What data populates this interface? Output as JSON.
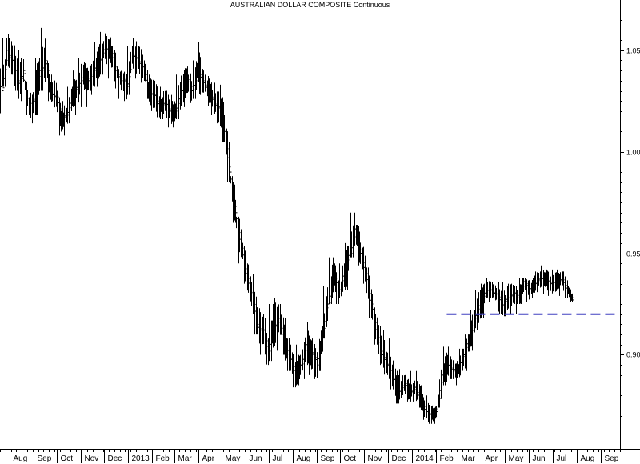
{
  "chart_data": {
    "type": "line",
    "title": "AUSTRALIAN DOLLAR COMPOSITE Continuous",
    "xlabel": "",
    "ylabel": "",
    "x_axis_labels": [
      "Aug",
      "Sep",
      "Oct",
      "Nov",
      "Dec",
      "2013",
      "Feb",
      "Mar",
      "Apr",
      "May",
      "Jun",
      "Jul",
      "Aug",
      "Sep",
      "Oct",
      "Nov",
      "Dec",
      "2014",
      "Feb",
      "Mar",
      "Apr",
      "May",
      "Jun",
      "Jul",
      "Aug",
      "Sep"
    ],
    "y_ticks": [
      0.9,
      0.95,
      1.0,
      1.05
    ],
    "y_tick_labels": [
      "0.90",
      "0.95",
      "1.00",
      "1.05"
    ],
    "ylim": [
      0.86,
      1.07
    ],
    "y_axis_position": "right",
    "grid": false,
    "series": [
      {
        "x": [
          "2012-07-16",
          "2012-07-23",
          "2012-07-30",
          "2012-08-06",
          "2012-08-13",
          "2012-08-20",
          "2012-08-27",
          "2012-09-03",
          "2012-09-10",
          "2012-09-17",
          "2012-09-24",
          "2012-10-01",
          "2012-10-08",
          "2012-10-15",
          "2012-10-22",
          "2012-10-29",
          "2012-11-05",
          "2012-11-12",
          "2012-11-19",
          "2012-11-26",
          "2012-12-03",
          "2012-12-10",
          "2012-12-17",
          "2012-12-24",
          "2012-12-31",
          "2013-01-07",
          "2013-01-14",
          "2013-01-21",
          "2013-01-28",
          "2013-02-04",
          "2013-02-11",
          "2013-02-18",
          "2013-02-25",
          "2013-03-04",
          "2013-03-11",
          "2013-03-18",
          "2013-03-25",
          "2013-04-01",
          "2013-04-08",
          "2013-04-15",
          "2013-04-22",
          "2013-04-29",
          "2013-05-06",
          "2013-05-13",
          "2013-05-20",
          "2013-05-27",
          "2013-06-03",
          "2013-06-10",
          "2013-06-17",
          "2013-06-24",
          "2013-07-01",
          "2013-07-08",
          "2013-07-15",
          "2013-07-22",
          "2013-07-29",
          "2013-08-05",
          "2013-08-12",
          "2013-08-19",
          "2013-08-26",
          "2013-09-02",
          "2013-09-09",
          "2013-09-16",
          "2013-09-23",
          "2013-09-30",
          "2013-10-07",
          "2013-10-14",
          "2013-10-21",
          "2013-10-28",
          "2013-11-04",
          "2013-11-11",
          "2013-11-18",
          "2013-11-25",
          "2013-12-02",
          "2013-12-09",
          "2013-12-16",
          "2013-12-23",
          "2013-12-30",
          "2014-01-06",
          "2014-01-13",
          "2014-01-20",
          "2014-01-27",
          "2014-02-03",
          "2014-02-10",
          "2014-02-17",
          "2014-02-24",
          "2014-03-03",
          "2014-03-10",
          "2014-03-17",
          "2014-03-24",
          "2014-03-31",
          "2014-04-07",
          "2014-04-14",
          "2014-04-21",
          "2014-04-28",
          "2014-05-05",
          "2014-05-12",
          "2014-05-19",
          "2014-05-26",
          "2014-06-02",
          "2014-06-09",
          "2014-06-16",
          "2014-06-23",
          "2014-06-30",
          "2014-07-07",
          "2014-07-14",
          "2014-07-21"
        ],
        "high": [
          1.045,
          1.056,
          1.058,
          1.055,
          1.05,
          1.035,
          1.032,
          1.046,
          1.061,
          1.045,
          1.038,
          1.03,
          1.025,
          1.032,
          1.04,
          1.046,
          1.044,
          1.049,
          1.054,
          1.059,
          1.057,
          1.052,
          1.042,
          1.04,
          1.052,
          1.056,
          1.052,
          1.045,
          1.038,
          1.035,
          1.032,
          1.03,
          1.028,
          1.038,
          1.042,
          1.042,
          1.045,
          1.054,
          1.04,
          1.036,
          1.034,
          1.033,
          1.012,
          0.988,
          0.968,
          0.955,
          0.945,
          0.94,
          0.925,
          0.92,
          0.925,
          0.928,
          0.925,
          0.918,
          0.905,
          0.905,
          0.912,
          0.916,
          0.908,
          0.914,
          0.934,
          0.948,
          0.945,
          0.945,
          0.955,
          0.97,
          0.964,
          0.955,
          0.943,
          0.93,
          0.92,
          0.912,
          0.908,
          0.898,
          0.893,
          0.89,
          0.892,
          0.892,
          0.885,
          0.88,
          0.875,
          0.893,
          0.904,
          0.904,
          0.897,
          0.903,
          0.91,
          0.922,
          0.932,
          0.935,
          0.938,
          0.936,
          0.938,
          0.936,
          0.935,
          0.934,
          0.938,
          0.938,
          0.939,
          0.941,
          0.944,
          0.942,
          0.942,
          0.942,
          0.941,
          0.934
        ],
        "low": [
          1.01,
          1.032,
          1.038,
          1.03,
          1.025,
          1.018,
          1.014,
          1.018,
          1.03,
          1.025,
          1.017,
          1.008,
          1.008,
          1.012,
          1.018,
          1.022,
          1.022,
          1.028,
          1.032,
          1.038,
          1.036,
          1.03,
          1.026,
          1.025,
          1.028,
          1.036,
          1.034,
          1.026,
          1.02,
          1.017,
          1.016,
          1.012,
          1.012,
          1.016,
          1.022,
          1.024,
          1.026,
          1.028,
          1.022,
          1.018,
          1.014,
          1.005,
          0.985,
          0.965,
          0.945,
          0.935,
          0.923,
          0.91,
          0.9,
          0.895,
          0.897,
          0.902,
          0.9,
          0.892,
          0.884,
          0.885,
          0.888,
          0.89,
          0.888,
          0.892,
          0.908,
          0.925,
          0.925,
          0.928,
          0.932,
          0.948,
          0.944,
          0.935,
          0.918,
          0.905,
          0.895,
          0.89,
          0.883,
          0.876,
          0.878,
          0.877,
          0.877,
          0.874,
          0.868,
          0.866,
          0.866,
          0.874,
          0.885,
          0.888,
          0.885,
          0.888,
          0.892,
          0.902,
          0.912,
          0.918,
          0.926,
          0.923,
          0.92,
          0.919,
          0.92,
          0.92,
          0.925,
          0.926,
          0.928,
          0.929,
          0.93,
          0.929,
          0.93,
          0.929,
          0.928,
          0.926
        ],
        "close": [
          1.03,
          1.05,
          1.045,
          1.035,
          1.04,
          1.022,
          1.025,
          1.04,
          1.045,
          1.03,
          1.028,
          1.015,
          1.018,
          1.028,
          1.032,
          1.038,
          1.035,
          1.04,
          1.045,
          1.052,
          1.05,
          1.04,
          1.035,
          1.032,
          1.048,
          1.046,
          1.042,
          1.03,
          1.028,
          1.022,
          1.025,
          1.02,
          1.02,
          1.03,
          1.035,
          1.03,
          1.04,
          1.035,
          1.03,
          1.025,
          1.022,
          1.01,
          0.99,
          0.97,
          0.955,
          0.94,
          0.93,
          0.915,
          0.912,
          0.9,
          0.915,
          0.918,
          0.905,
          0.898,
          0.89,
          0.895,
          0.905,
          0.9,
          0.895,
          0.91,
          0.925,
          0.94,
          0.93,
          0.94,
          0.95,
          0.962,
          0.95,
          0.94,
          0.925,
          0.91,
          0.9,
          0.895,
          0.888,
          0.882,
          0.886,
          0.882,
          0.884,
          0.878,
          0.872,
          0.87,
          0.872,
          0.89,
          0.895,
          0.892,
          0.893,
          0.9,
          0.908,
          0.918,
          0.925,
          0.932,
          0.932,
          0.93,
          0.924,
          0.928,
          0.93,
          0.928,
          0.936,
          0.932,
          0.935,
          0.938,
          0.937,
          0.935,
          0.936,
          0.938,
          0.932,
          0.927
        ]
      }
    ],
    "reference_line": {
      "y": 0.92,
      "x_start": "2014-02-15",
      "x_end": "2014-09-25",
      "color": "#4040c0",
      "style": "dashed"
    },
    "colors": {
      "bars": "#000000",
      "background": "#ffffff"
    }
  }
}
